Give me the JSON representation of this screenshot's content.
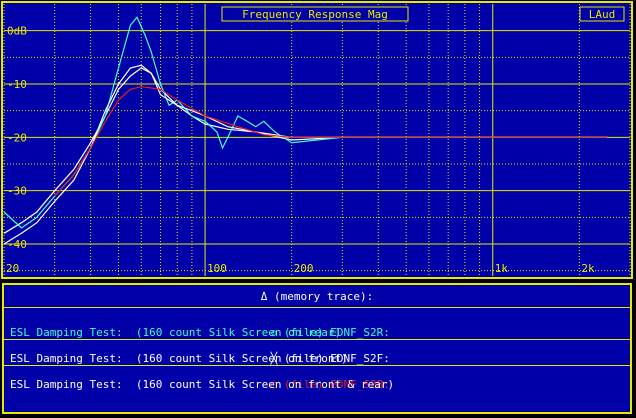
{
  "window": {
    "title": "Frequency Response Mag",
    "badge": "LAud"
  },
  "colors": {
    "background": "#0000a8",
    "grid": "#e8e800",
    "axis_text": "#e8e800",
    "memory": "#ffffff",
    "file1": "#40ffd0",
    "file2": "#ffffff",
    "file3": "#e02020"
  },
  "chart_data": {
    "type": "line",
    "title": "Frequency Response Mag",
    "xscale": "log",
    "xlim": [
      20,
      3000
    ],
    "ylim": [
      -46,
      5
    ],
    "grid": true,
    "x_tick_labels": [
      {
        "value": 20,
        "label": "20"
      },
      {
        "value": 100,
        "label": "100"
      },
      {
        "value": 200,
        "label": "200"
      },
      {
        "value": 1000,
        "label": "1k"
      },
      {
        "value": 2000,
        "label": "2k"
      }
    ],
    "y_tick_labels": [
      {
        "value": 0,
        "label": "0dB"
      },
      {
        "value": -10,
        "label": "-10"
      },
      {
        "value": -20,
        "label": "-20"
      },
      {
        "value": -30,
        "label": "-30"
      },
      {
        "value": -40,
        "label": "-40"
      }
    ],
    "series": [
      {
        "marker": "triangle",
        "color": "#ffffff",
        "points": [
          [
            20,
            -38
          ],
          [
            23,
            -36
          ],
          [
            26,
            -34
          ],
          [
            30,
            -30
          ],
          [
            35,
            -26
          ],
          [
            40,
            -21
          ],
          [
            45,
            -16
          ],
          [
            50,
            -11
          ],
          [
            55,
            -8.5
          ],
          [
            60,
            -7
          ],
          [
            65,
            -8
          ],
          [
            70,
            -11
          ],
          [
            80,
            -14
          ],
          [
            90,
            -16
          ],
          [
            100,
            -17.5
          ],
          [
            120,
            -18.5
          ],
          [
            150,
            -19
          ],
          [
            200,
            -20.5
          ],
          [
            300,
            -20
          ],
          [
            500,
            -20
          ],
          [
            1000,
            -20
          ],
          [
            2000,
            -20
          ],
          [
            2500,
            -20
          ]
        ]
      },
      {
        "marker": "diamond",
        "color": "#40ffd0",
        "points": [
          [
            20,
            -34
          ],
          [
            23,
            -37
          ],
          [
            26,
            -35
          ],
          [
            30,
            -31
          ],
          [
            35,
            -27
          ],
          [
            40,
            -22
          ],
          [
            45,
            -16
          ],
          [
            50,
            -7
          ],
          [
            55,
            1
          ],
          [
            58,
            2.5
          ],
          [
            62,
            -1
          ],
          [
            65,
            -4
          ],
          [
            70,
            -10
          ],
          [
            75,
            -14
          ],
          [
            80,
            -13
          ],
          [
            90,
            -16
          ],
          [
            100,
            -17
          ],
          [
            110,
            -19
          ],
          [
            115,
            -22
          ],
          [
            120,
            -20
          ],
          [
            130,
            -16
          ],
          [
            140,
            -17
          ],
          [
            150,
            -18
          ],
          [
            160,
            -17
          ],
          [
            175,
            -19
          ],
          [
            200,
            -21
          ],
          [
            300,
            -20
          ],
          [
            500,
            -20
          ],
          [
            1000,
            -20
          ],
          [
            2000,
            -20
          ],
          [
            2500,
            -20
          ]
        ]
      },
      {
        "marker": "x",
        "color": "#ffffff",
        "points": [
          [
            20,
            -40
          ],
          [
            23,
            -38
          ],
          [
            26,
            -36
          ],
          [
            30,
            -32
          ],
          [
            35,
            -28
          ],
          [
            40,
            -22
          ],
          [
            45,
            -15
          ],
          [
            50,
            -10
          ],
          [
            55,
            -7
          ],
          [
            60,
            -6.5
          ],
          [
            65,
            -8
          ],
          [
            70,
            -12
          ],
          [
            80,
            -14
          ],
          [
            90,
            -15
          ],
          [
            100,
            -16
          ],
          [
            120,
            -18
          ],
          [
            150,
            -19
          ],
          [
            200,
            -20
          ],
          [
            300,
            -20
          ],
          [
            500,
            -20
          ],
          [
            1000,
            -20
          ],
          [
            2000,
            -20
          ],
          [
            2500,
            -20
          ]
        ]
      },
      {
        "marker": "circle",
        "color": "#e02020",
        "points": [
          [
            30,
            -31
          ],
          [
            35,
            -27
          ],
          [
            40,
            -22
          ],
          [
            45,
            -17
          ],
          [
            50,
            -13
          ],
          [
            55,
            -11
          ],
          [
            60,
            -10.5
          ],
          [
            70,
            -11
          ],
          [
            80,
            -13
          ],
          [
            100,
            -16
          ],
          [
            130,
            -18
          ],
          [
            160,
            -19.5
          ],
          [
            200,
            -20
          ],
          [
            300,
            -20
          ],
          [
            500,
            -20
          ],
          [
            1000,
            -20
          ],
          [
            2000,
            -20
          ],
          [
            2500,
            -20
          ]
        ]
      }
    ]
  },
  "legend": {
    "memory_label": "Δ (memory trace):",
    "entries": [
      {
        "marker": "◇",
        "file": "(file) EDNF_S2R:",
        "description": "ESL Damping Test:  (160 count Silk Screen on rear)",
        "color": "#40ffd0"
      },
      {
        "marker": "╳",
        "file": "(file) EDNF_S2F:",
        "description": "ESL Damping Test:  (160 count Silk Screen on front)",
        "color": "#ffffff"
      },
      {
        "marker": "○",
        "file": "(file) EDNF_S2B:",
        "description": "ESL Damping Test:  (160 count Silk Screen on front & rear)",
        "color": "#e02020"
      }
    ]
  }
}
